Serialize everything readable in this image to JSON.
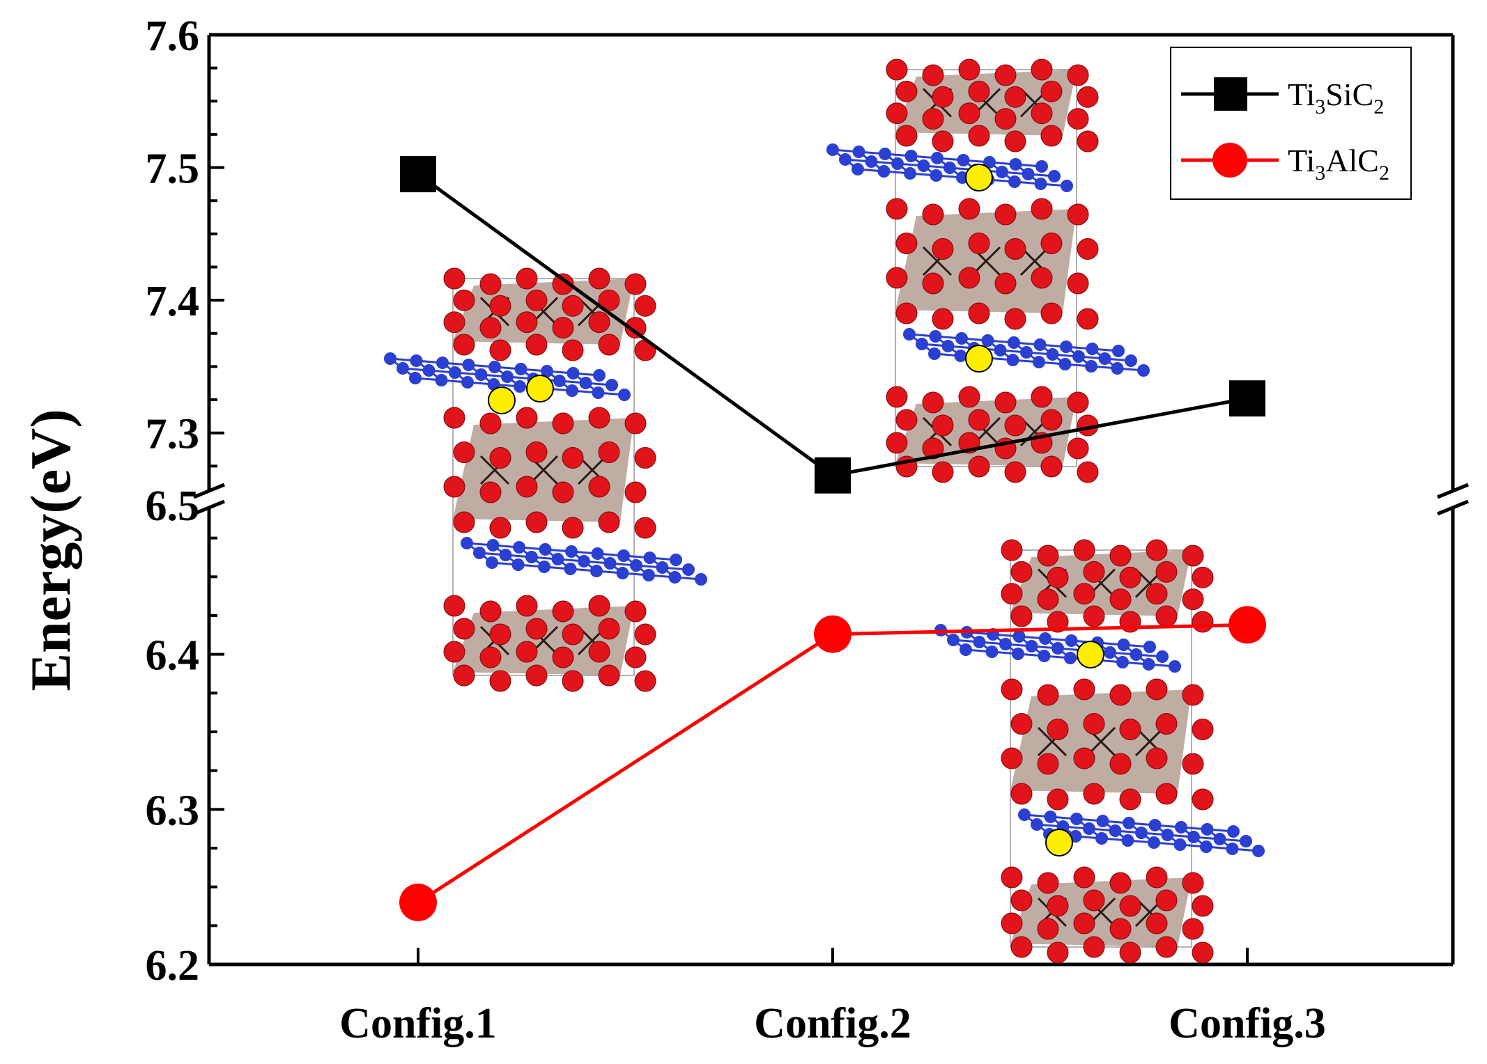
{
  "chart_data": {
    "type": "line",
    "ylabel": "Energy(eV)",
    "categories": [
      "Config.1",
      "Config.2",
      "Config.3"
    ],
    "axis_break": {
      "lower_range": [
        6.2,
        6.5
      ],
      "upper_range": [
        7.25,
        7.6
      ]
    },
    "yticks_lower": [
      "6.2",
      "6.3",
      "6.4",
      "6.5"
    ],
    "yticks_upper": [
      "7.3",
      "7.4",
      "7.5",
      "7.6"
    ],
    "legend_position": "top-right",
    "series": [
      {
        "name": "Ti3SiC2",
        "legend_parts": [
          "Ti",
          "3",
          "SiC",
          "2"
        ],
        "color": "#000000",
        "marker": "square",
        "values": [
          7.495,
          7.268,
          7.326
        ]
      },
      {
        "name": "Ti3AlC2",
        "legend_parts": [
          "Ti",
          "3",
          "AlC",
          "2"
        ],
        "color": "#ff0000",
        "marker": "circle",
        "values": [
          6.24,
          6.413,
          6.419
        ]
      }
    ],
    "insets": [
      {
        "label": "crystal-structure-config-1",
        "yellow_atoms": 2
      },
      {
        "label": "crystal-structure-config-2",
        "yellow_atoms": 2
      },
      {
        "label": "crystal-structure-config-3",
        "yellow_atoms": 2
      }
    ],
    "colors": {
      "ti_atom": "#e0141a",
      "c_atom": "#2b3fd1",
      "dopant_atom": "#ffee00",
      "octahedra": "#8a6a5a"
    }
  }
}
